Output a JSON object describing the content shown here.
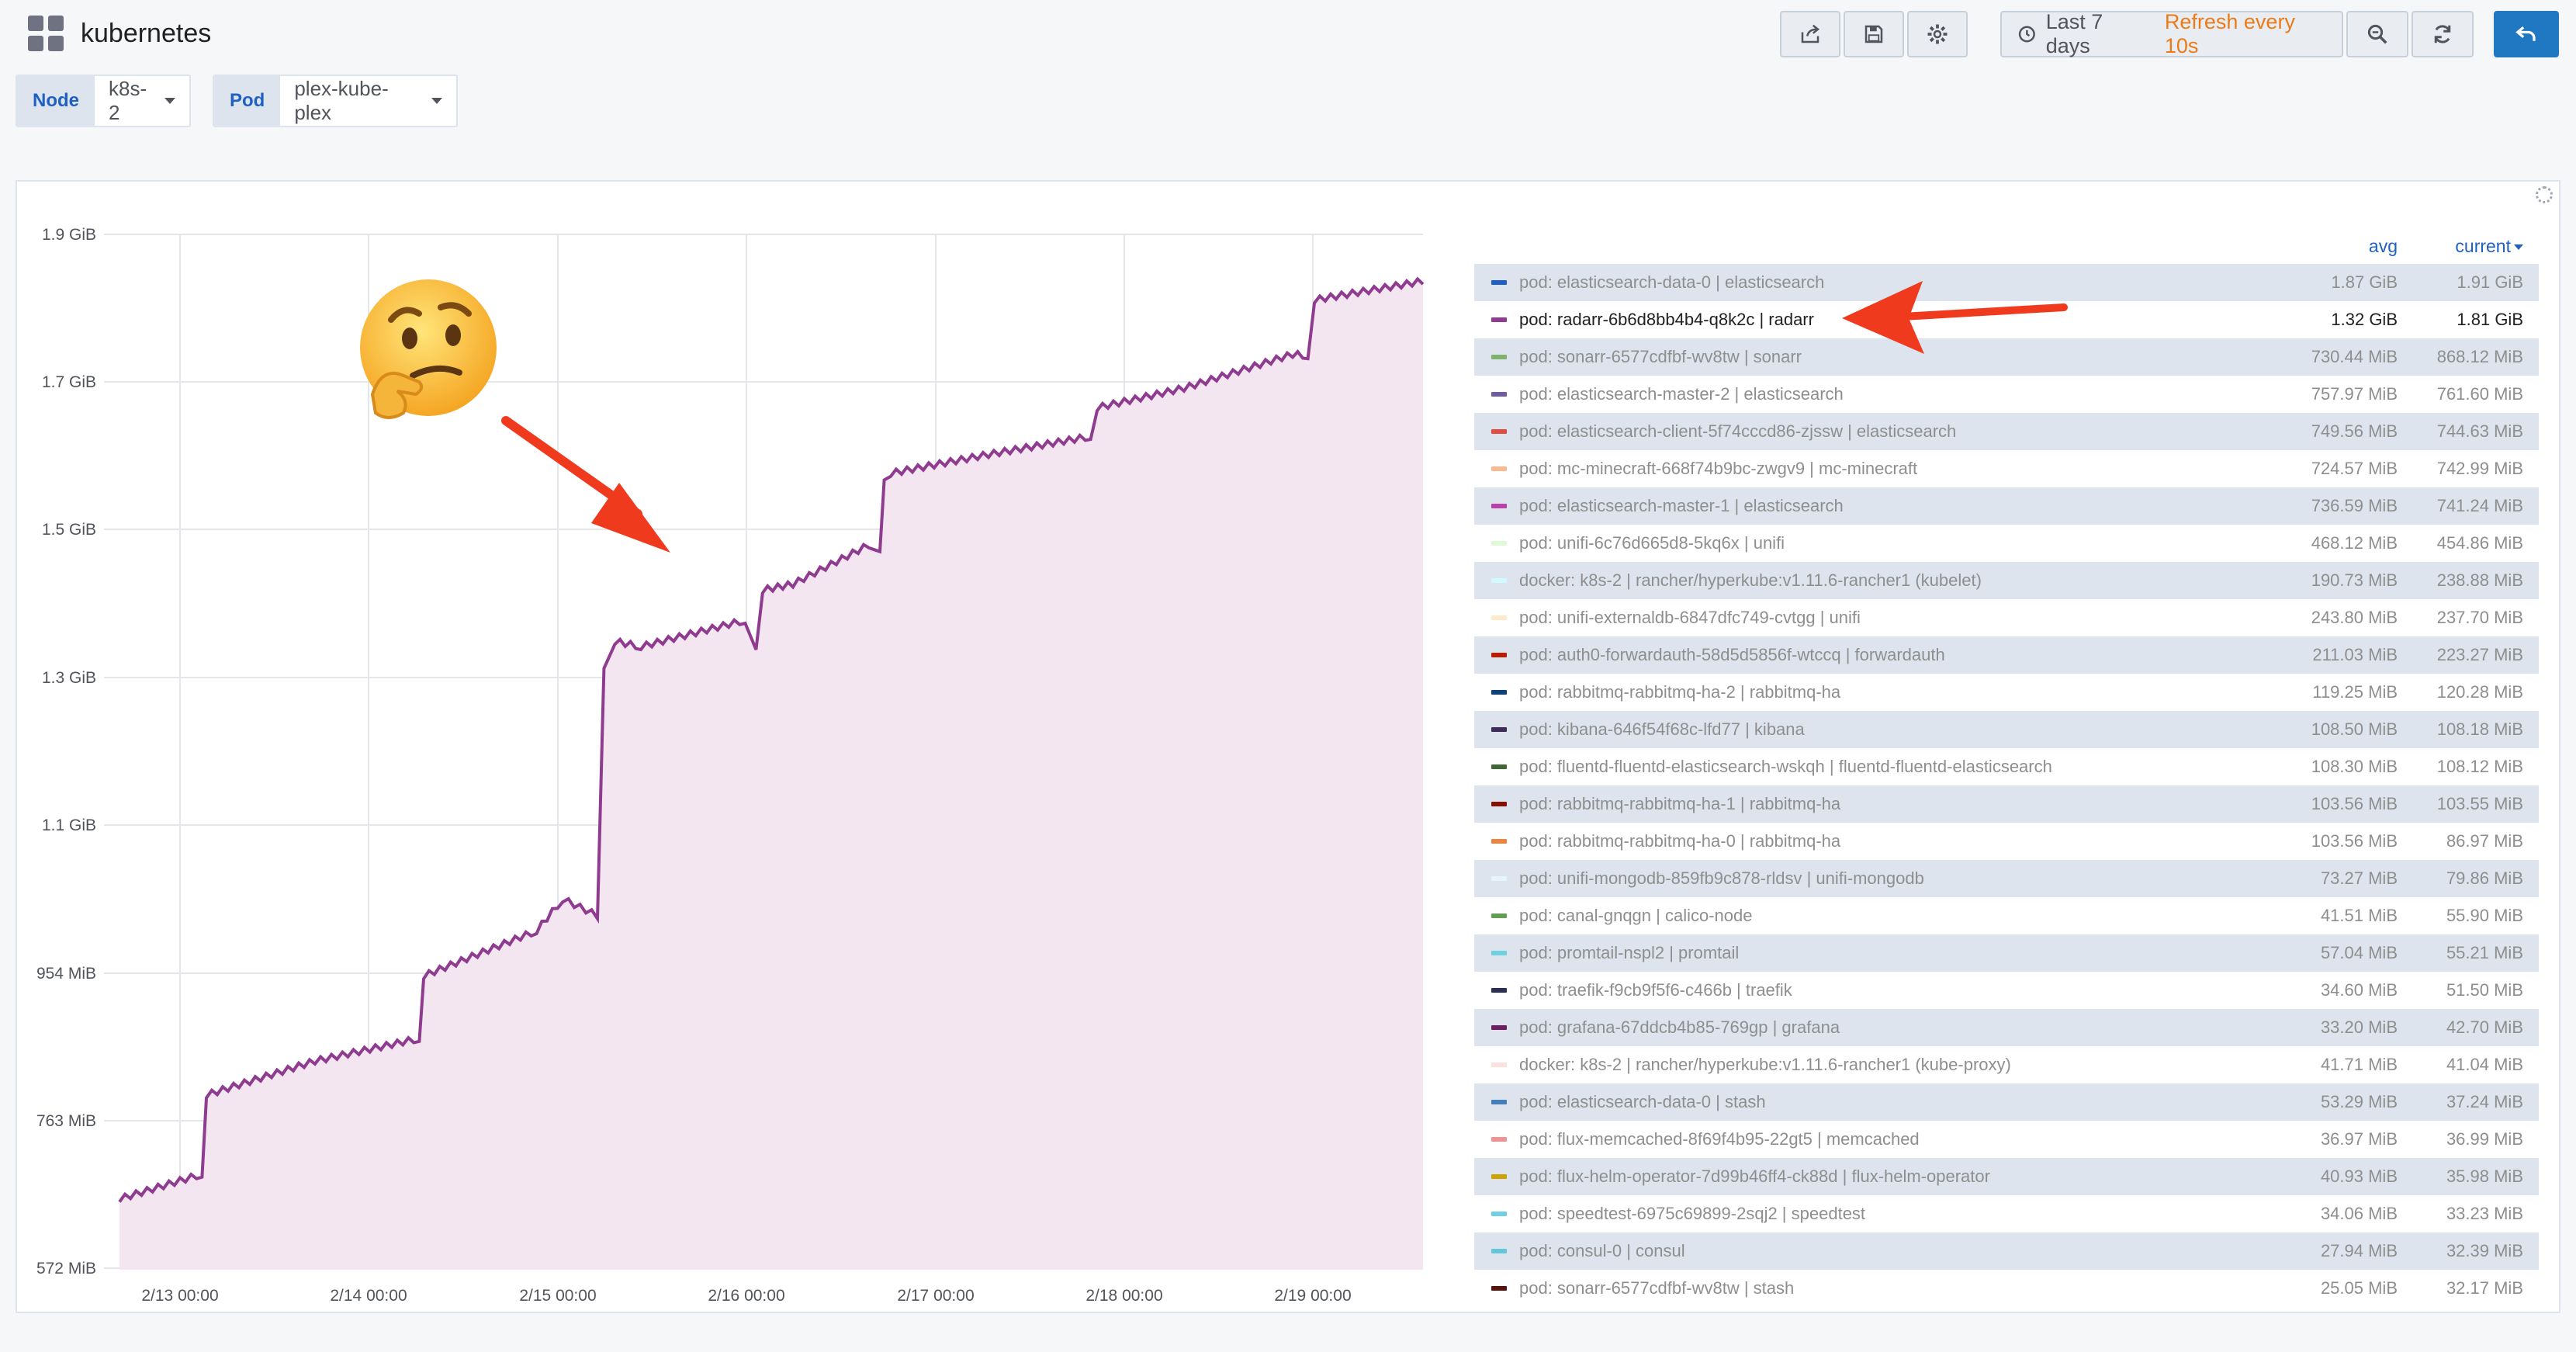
{
  "app": {
    "title": "kubernetes"
  },
  "toolbar": {
    "share_icon": "share-icon",
    "save_icon": "save-icon",
    "settings_icon": "gear-icon",
    "time_range": "Last 7 days",
    "refresh": "Refresh every 10s",
    "zoom_icon": "search-icon",
    "refresh_icon": "refresh-icon",
    "back_icon": "back-arrow-icon"
  },
  "variables": [
    {
      "label": "Node",
      "value": "k8s-2"
    },
    {
      "label": "Pod",
      "value": "plex-kube-plex"
    }
  ],
  "colors": {
    "series": "#8f3b8f",
    "fill": "#f3e6f1",
    "accent": "#1f78c1",
    "refresh": "#eb7b18",
    "annotation_arrow": "#f03a1e"
  },
  "chart_data": {
    "type": "area",
    "ylabels": [
      "1.9 GiB",
      "1.7 GiB",
      "1.5 GiB",
      "1.3 GiB",
      "1.1 GiB",
      "954 MiB",
      "763 MiB",
      "572 MiB"
    ],
    "xlabels": [
      "2/13 00:00",
      "2/14 00:00",
      "2/15 00:00",
      "2/16 00:00",
      "2/17 00:00",
      "2/18 00:00",
      "2/19 00:00"
    ],
    "ylim_mib": [
      572,
      1946
    ],
    "series": [
      {
        "name": "pod: radarr-6b6d8bb4b4-q8k2c | radarr",
        "points": [
          [
            0,
            662
          ],
          [
            0.38,
            695
          ],
          [
            0.4,
            800
          ],
          [
            0.9,
            845
          ],
          [
            1.38,
            875
          ],
          [
            1.4,
            958
          ],
          [
            1.92,
            1018
          ],
          [
            2.04,
            1060
          ],
          [
            2.2,
            1038
          ],
          [
            2.23,
            1370
          ],
          [
            2.28,
            1402
          ],
          [
            2.4,
            1395
          ],
          [
            2.88,
            1430
          ],
          [
            2.93,
            1395
          ],
          [
            2.96,
            1470
          ],
          [
            3.1,
            1478
          ],
          [
            3.45,
            1530
          ],
          [
            3.5,
            1525
          ],
          [
            3.52,
            1620
          ],
          [
            3.55,
            1625
          ],
          [
            4.0,
            1650
          ],
          [
            4.47,
            1674
          ],
          [
            4.5,
            1712
          ],
          [
            4.9,
            1738
          ],
          [
            5.4,
            1783
          ],
          [
            5.47,
            1781
          ],
          [
            5.5,
            1855
          ],
          [
            6.0,
            1880
          ]
        ]
      }
    ]
  },
  "legend": {
    "col_avg": "avg",
    "col_current": "current",
    "rows": [
      {
        "name": "pod: elasticsearch-data-0 | elasticsearch",
        "avg": "1.87 GiB",
        "current": "1.91 GiB",
        "color": "#1f60c4"
      },
      {
        "name": "pod: radarr-6b6d8bb4b4-q8k2c | radarr",
        "avg": "1.32 GiB",
        "current": "1.81 GiB",
        "color": "#8f3b8f"
      },
      {
        "name": "pod: sonarr-6577cdfbf-wv8tw | sonarr",
        "avg": "730.44 MiB",
        "current": "868.12 MiB",
        "color": "#7eb26d"
      },
      {
        "name": "pod: elasticsearch-master-2 | elasticsearch",
        "avg": "757.97 MiB",
        "current": "761.60 MiB",
        "color": "#705da0"
      },
      {
        "name": "pod: elasticsearch-client-5f74cccd86-zjssw | elasticsearch",
        "avg": "749.56 MiB",
        "current": "744.63 MiB",
        "color": "#e24d42"
      },
      {
        "name": "pod: mc-minecraft-668f74b9bc-zwgv9 | mc-minecraft",
        "avg": "724.57 MiB",
        "current": "742.99 MiB",
        "color": "#f9ba8f"
      },
      {
        "name": "pod: elasticsearch-master-1 | elasticsearch",
        "avg": "736.59 MiB",
        "current": "741.24 MiB",
        "color": "#ba43a9"
      },
      {
        "name": "pod: unifi-6c76d665d8-5kq6x | unifi",
        "avg": "468.12 MiB",
        "current": "454.86 MiB",
        "color": "#e0f9d7"
      },
      {
        "name": "docker: k8s-2 | rancher/hyperkube:v1.11.6-rancher1 (kubelet)",
        "avg": "190.73 MiB",
        "current": "238.88 MiB",
        "color": "#cffaff"
      },
      {
        "name": "pod: unifi-externaldb-6847dfc749-cvtgg | unifi",
        "avg": "243.80 MiB",
        "current": "237.70 MiB",
        "color": "#fceaca"
      },
      {
        "name": "pod: auth0-forwardauth-58d5d5856f-wtccq | forwardauth",
        "avg": "211.03 MiB",
        "current": "223.27 MiB",
        "color": "#bf1b00"
      },
      {
        "name": "pod: rabbitmq-rabbitmq-ha-2 | rabbitmq-ha",
        "avg": "119.25 MiB",
        "current": "120.28 MiB",
        "color": "#0a437c"
      },
      {
        "name": "pod: kibana-646f54f68c-lfd77 | kibana",
        "avg": "108.50 MiB",
        "current": "108.18 MiB",
        "color": "#3f2b5b"
      },
      {
        "name": "pod: fluentd-fluentd-elasticsearch-wskqh | fluentd-fluentd-elasticsearch",
        "avg": "108.30 MiB",
        "current": "108.12 MiB",
        "color": "#3f6833"
      },
      {
        "name": "pod: rabbitmq-rabbitmq-ha-1 | rabbitmq-ha",
        "avg": "103.56 MiB",
        "current": "103.55 MiB",
        "color": "#890f02"
      },
      {
        "name": "pod: rabbitmq-rabbitmq-ha-0 | rabbitmq-ha",
        "avg": "103.56 MiB",
        "current": "86.97 MiB",
        "color": "#ef843c"
      },
      {
        "name": "pod: unifi-mongodb-859fb9c878-rldsv | unifi-mongodb",
        "avg": "73.27 MiB",
        "current": "79.86 MiB",
        "color": "#e5f5fa"
      },
      {
        "name": "pod: canal-gnqgn | calico-node",
        "avg": "41.51 MiB",
        "current": "55.90 MiB",
        "color": "#629e51"
      },
      {
        "name": "pod: promtail-nspl2 | promtail",
        "avg": "57.04 MiB",
        "current": "55.21 MiB",
        "color": "#6ed0e0"
      },
      {
        "name": "pod: traefik-f9cb9f5f6-c466b | traefik",
        "avg": "34.60 MiB",
        "current": "51.50 MiB",
        "color": "#2b2f55"
      },
      {
        "name": "pod: grafana-67ddcb4b85-769gp | grafana",
        "avg": "33.20 MiB",
        "current": "42.70 MiB",
        "color": "#6d1f62"
      },
      {
        "name": "docker: k8s-2 | rancher/hyperkube:v1.11.6-rancher1 (kube-proxy)",
        "avg": "41.71 MiB",
        "current": "41.04 MiB",
        "color": "#fce2de"
      },
      {
        "name": "pod: elasticsearch-data-0 | stash",
        "avg": "53.29 MiB",
        "current": "37.24 MiB",
        "color": "#447ebc"
      },
      {
        "name": "pod: flux-memcached-8f69f4b95-22gt5 | memcached",
        "avg": "36.97 MiB",
        "current": "36.99 MiB",
        "color": "#f29191"
      },
      {
        "name": "pod: flux-helm-operator-7d99b46ff4-ck88d | flux-helm-operator",
        "avg": "40.93 MiB",
        "current": "35.98 MiB",
        "color": "#cca300"
      },
      {
        "name": "pod: speedtest-6975c69899-2sqj2 | speedtest",
        "avg": "34.06 MiB",
        "current": "33.23 MiB",
        "color": "#6ed0e0"
      },
      {
        "name": "pod: consul-0 | consul",
        "avg": "27.94 MiB",
        "current": "32.39 MiB",
        "color": "#65c5db"
      },
      {
        "name": "pod: sonarr-6577cdfbf-wv8tw | stash",
        "avg": "25.05 MiB",
        "current": "32.17 MiB",
        "color": "#58140c"
      }
    ]
  }
}
